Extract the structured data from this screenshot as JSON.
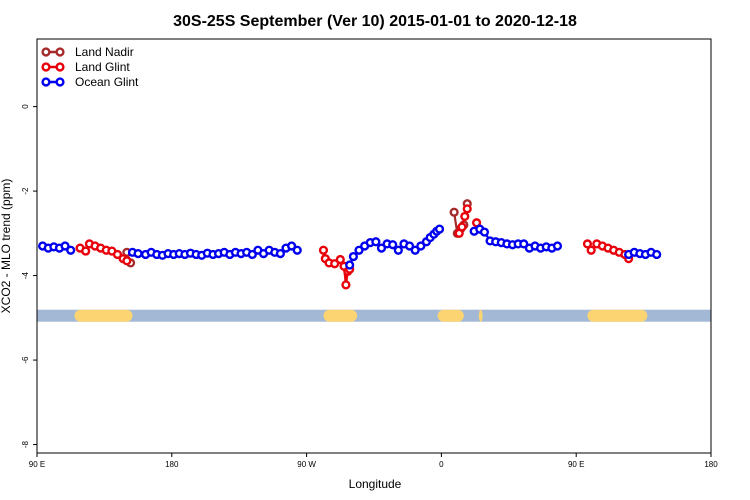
{
  "chart_data": {
    "type": "line",
    "title": "30S-25S September (Ver 10)   2015-01-01 to 2020-12-18",
    "xlabel": "Longitude",
    "ylabel": "XCO2 - MLO trend (ppm)",
    "xlim": [
      90,
      450
    ],
    "ylim": [
      -8.2,
      1.6
    ],
    "x_ticks": [
      {
        "value": 90,
        "label": "90 E"
      },
      {
        "value": 162,
        "label": "180"
      },
      {
        "value": 234,
        "label": "90 W"
      },
      {
        "value": 306,
        "label": "0"
      },
      {
        "value": 378,
        "label": "90 E"
      },
      {
        "value": 450,
        "label": "180"
      }
    ],
    "y_ticks": [
      {
        "value": 0,
        "label": "0"
      },
      {
        "value": -2,
        "label": "-2"
      },
      {
        "value": -4,
        "label": "-4"
      },
      {
        "value": -6,
        "label": "-6"
      },
      {
        "value": -8,
        "label": "-8"
      }
    ],
    "surface_band": {
      "y_center": -4.95,
      "base_color": "#a2b8d5",
      "land_color": "#fcd472",
      "land_segments": [
        [
          110,
          141
        ],
        [
          243,
          261
        ],
        [
          304,
          318
        ],
        [
          326,
          328
        ],
        [
          384,
          416
        ]
      ]
    },
    "legend_position": "top-left",
    "series": [
      {
        "name": "Land Nadir",
        "color": "#a52a2a",
        "segments": [
          [
            [
              138,
              -3.45
            ],
            [
              140,
              -3.7
            ]
          ],
          [
            [
              312.8,
              -2.5
            ],
            [
              314.5,
              -3.0
            ],
            [
              316.2,
              -2.9
            ],
            [
              318,
              -2.8
            ],
            [
              319.8,
              -2.3
            ]
          ]
        ]
      },
      {
        "name": "Land Glint",
        "color": "#e8000b",
        "segments": [
          [
            [
              113,
              -3.35
            ],
            [
              116,
              -3.42
            ],
            [
              118,
              -3.25
            ],
            [
              121,
              -3.3
            ],
            [
              124,
              -3.35
            ],
            [
              127,
              -3.4
            ],
            [
              130,
              -3.42
            ],
            [
              133,
              -3.5
            ],
            [
              136,
              -3.6
            ],
            [
              138,
              -3.65
            ]
          ],
          [
            [
              243,
              -3.4
            ],
            [
              244,
              -3.6
            ],
            [
              246,
              -3.7
            ],
            [
              249,
              -3.72
            ],
            [
              252,
              -3.62
            ],
            [
              254,
              -3.78
            ],
            [
              255,
              -4.22
            ],
            [
              256,
              -3.9
            ],
            [
              257,
              -3.85
            ]
          ],
          [
            [
              315.5,
              -3.0
            ],
            [
              317,
              -2.85
            ],
            [
              318.5,
              -2.6
            ],
            [
              319.8,
              -2.42
            ]
          ],
          [
            [
              324.8,
              -2.75
            ]
          ],
          [
            [
              384,
              -3.25
            ],
            [
              386,
              -3.4
            ],
            [
              389,
              -3.25
            ],
            [
              392,
              -3.3
            ],
            [
              395,
              -3.35
            ],
            [
              398,
              -3.4
            ],
            [
              401,
              -3.45
            ],
            [
              404,
              -3.5
            ],
            [
              406,
              -3.6
            ]
          ]
        ]
      },
      {
        "name": "Ocean Glint",
        "color": "#0000ee",
        "segments": [
          [
            [
              93,
              -3.3
            ],
            [
              96,
              -3.35
            ],
            [
              99,
              -3.32
            ],
            [
              102,
              -3.35
            ],
            [
              105,
              -3.3
            ],
            [
              108,
              -3.4
            ]
          ],
          [
            [
              141,
              -3.45
            ],
            [
              144,
              -3.48
            ],
            [
              148,
              -3.5
            ],
            [
              151,
              -3.45
            ],
            [
              154,
              -3.5
            ],
            [
              157,
              -3.52
            ],
            [
              160,
              -3.48
            ],
            [
              163,
              -3.5
            ],
            [
              166,
              -3.48
            ],
            [
              169,
              -3.5
            ],
            [
              172,
              -3.47
            ],
            [
              175,
              -3.5
            ],
            [
              178,
              -3.52
            ],
            [
              181,
              -3.47
            ],
            [
              184,
              -3.5
            ],
            [
              187,
              -3.48
            ],
            [
              190,
              -3.45
            ],
            [
              193,
              -3.5
            ],
            [
              196,
              -3.45
            ],
            [
              199,
              -3.48
            ],
            [
              202,
              -3.45
            ],
            [
              205,
              -3.5
            ],
            [
              208,
              -3.4
            ],
            [
              211,
              -3.48
            ],
            [
              214,
              -3.4
            ],
            [
              217,
              -3.45
            ],
            [
              220,
              -3.48
            ],
            [
              223,
              -3.35
            ],
            [
              226,
              -3.3
            ],
            [
              229,
              -3.4
            ]
          ],
          [
            [
              257,
              -3.75
            ],
            [
              259,
              -3.55
            ],
            [
              262,
              -3.4
            ],
            [
              265,
              -3.3
            ],
            [
              268,
              -3.22
            ],
            [
              271,
              -3.2
            ],
            [
              274,
              -3.35
            ],
            [
              277,
              -3.25
            ],
            [
              280,
              -3.27
            ],
            [
              283,
              -3.4
            ],
            [
              286,
              -3.25
            ],
            [
              289,
              -3.3
            ],
            [
              292,
              -3.4
            ],
            [
              295,
              -3.3
            ],
            [
              298,
              -3.2
            ],
            [
              300,
              -3.1
            ],
            [
              302,
              -3.02
            ],
            [
              303.5,
              -2.95
            ],
            [
              305,
              -2.9
            ]
          ],
          [
            [
              323.5,
              -2.95
            ],
            [
              326.5,
              -2.9
            ],
            [
              329,
              -2.97
            ],
            [
              332,
              -3.18
            ],
            [
              335,
              -3.2
            ],
            [
              338,
              -3.22
            ],
            [
              341,
              -3.25
            ],
            [
              344,
              -3.27
            ],
            [
              347,
              -3.25
            ],
            [
              350,
              -3.25
            ],
            [
              353,
              -3.35
            ],
            [
              356,
              -3.3
            ],
            [
              359,
              -3.35
            ],
            [
              362,
              -3.32
            ],
            [
              365,
              -3.35
            ],
            [
              368,
              -3.3
            ]
          ],
          [
            [
              406,
              -3.5
            ],
            [
              409,
              -3.45
            ],
            [
              412,
              -3.48
            ],
            [
              415,
              -3.5
            ],
            [
              418,
              -3.45
            ],
            [
              421,
              -3.5
            ]
          ]
        ]
      }
    ]
  }
}
